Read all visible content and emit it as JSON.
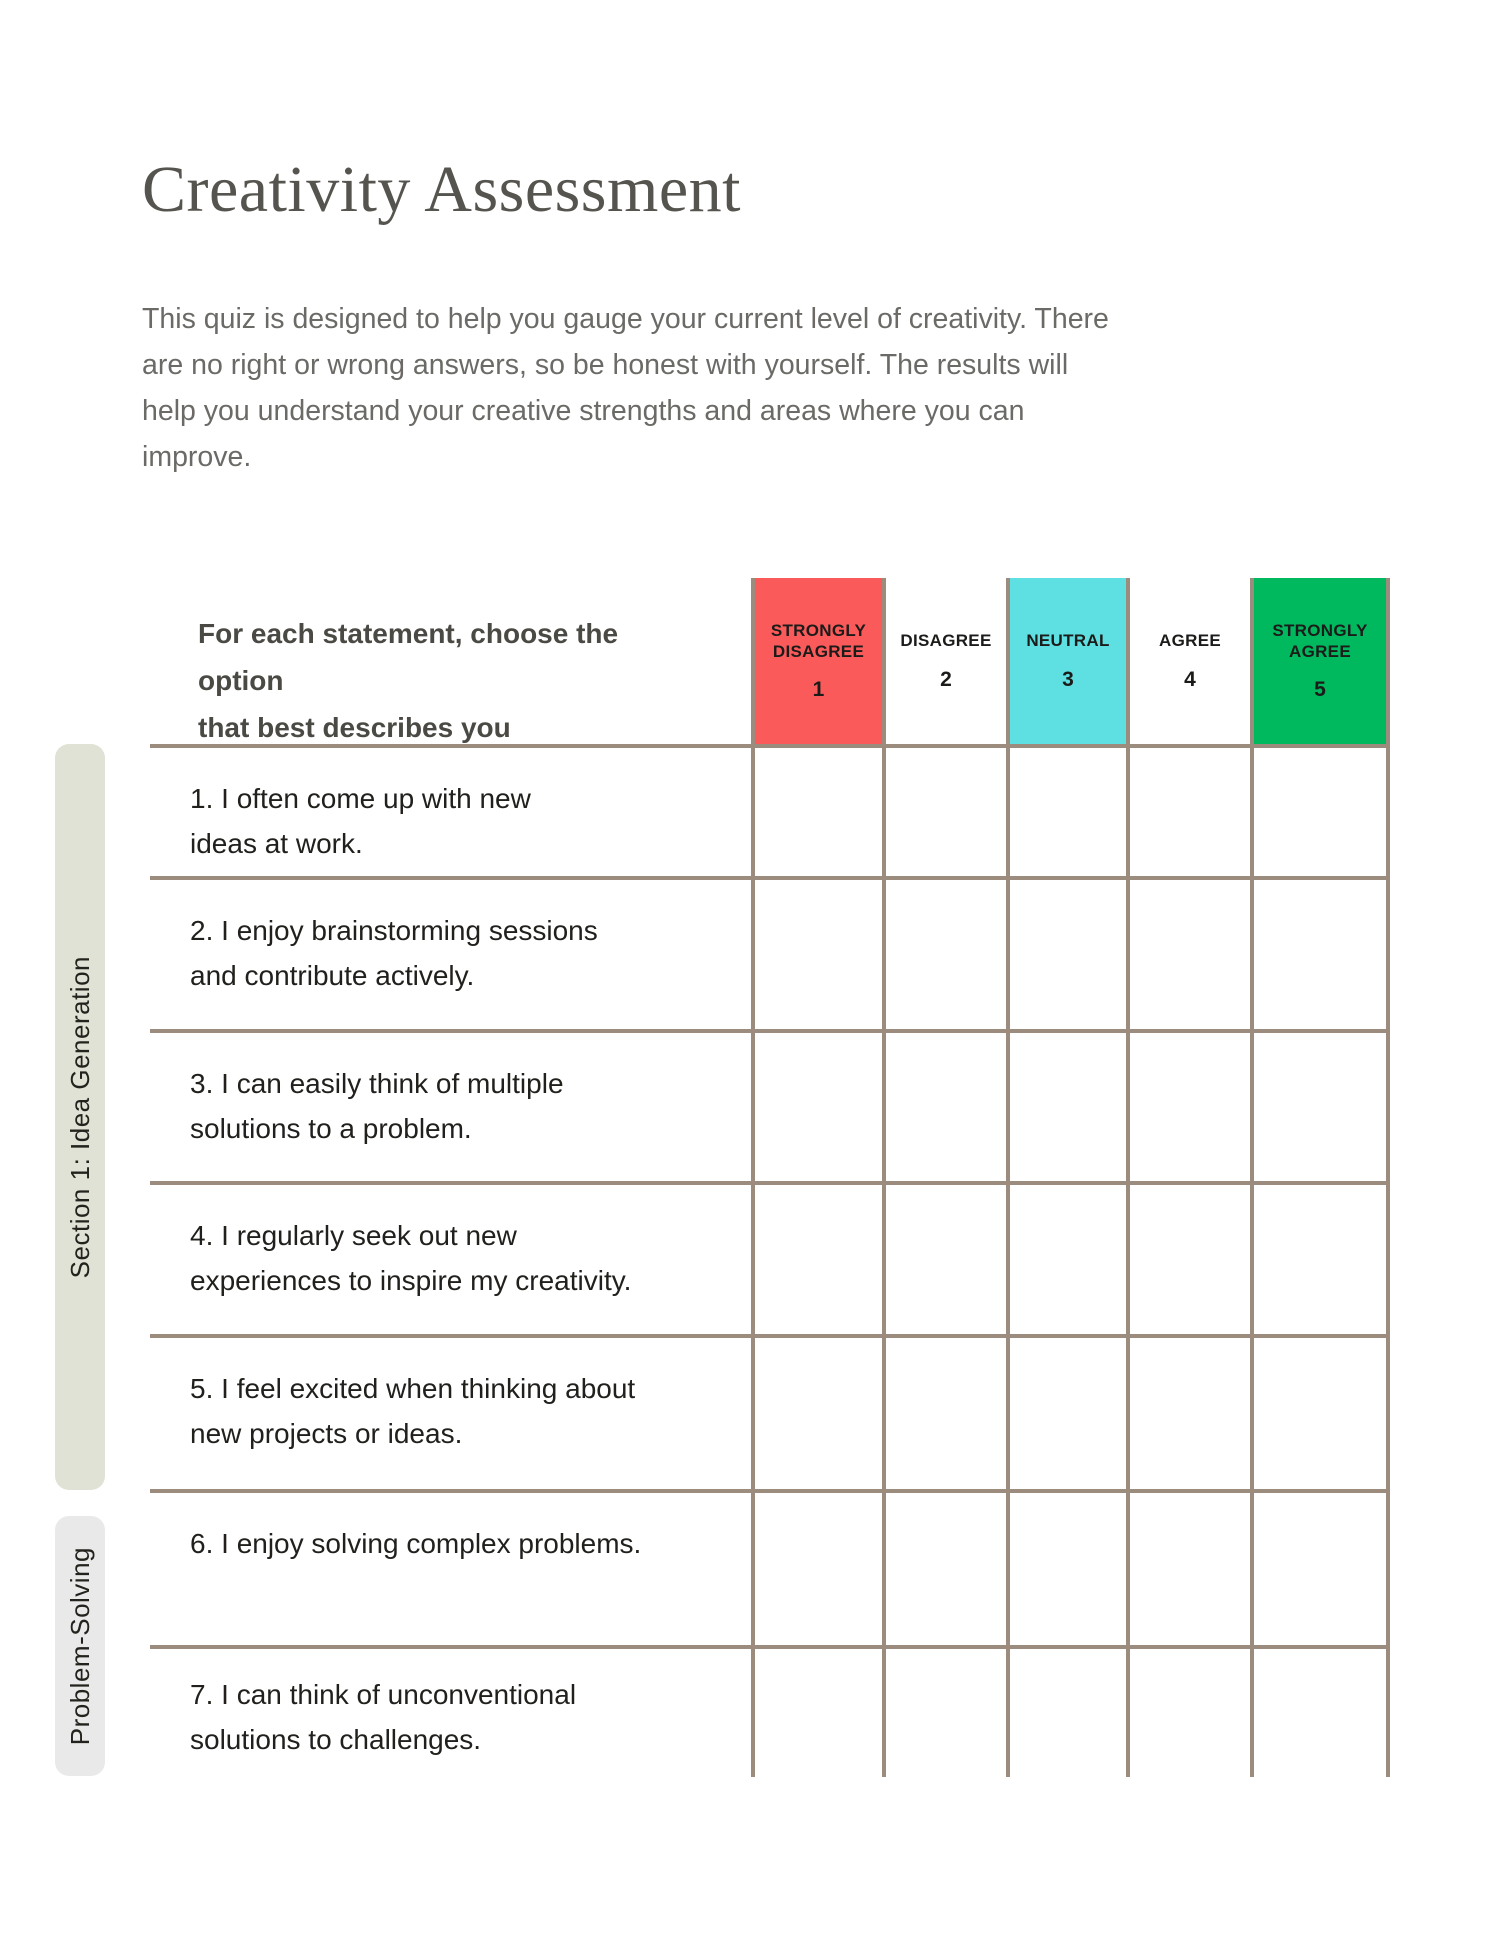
{
  "page": {
    "title": "Creativity Assessment",
    "description": "This quiz is designed to help you gauge your current level of creativity. There\nare no right or wrong answers, so be honest with yourself. The results will\nhelp you understand your creative strengths and areas where you can\nimprove."
  },
  "table": {
    "prompt": "For each statement, choose the option\nthat best describes you",
    "scale": [
      {
        "label": "STRONGLY\nDISAGREE",
        "value": "1",
        "color": "#fb5a5a"
      },
      {
        "label": "DISAGREE",
        "value": "2",
        "color": null
      },
      {
        "label": "NEUTRAL",
        "value": "3",
        "color": "#5ee0e3"
      },
      {
        "label": "AGREE",
        "value": "4",
        "color": null
      },
      {
        "label": "STRONGLY\nAGREE",
        "value": "5",
        "color": "#00b85e"
      }
    ],
    "questions": [
      "1. I often come up with new\nideas at work.",
      "2. I enjoy brainstorming sessions\nand contribute actively.",
      "3. I can easily think of multiple\nsolutions to a problem.",
      "4. I regularly seek out new\nexperiences to inspire my creativity.",
      "5. I feel excited when thinking about\nnew projects or ideas.",
      "6. I enjoy solving complex problems.",
      "7. I can think of unconventional\nsolutions to challenges."
    ]
  },
  "sections": [
    {
      "label": "Section 1: Idea Generation",
      "color": "#e0e2d5"
    },
    {
      "label": "Problem-Solving",
      "color": "#e9e9ea"
    }
  ],
  "colors": {
    "grid_line": "#9c8c7e",
    "strongly_disagree": "#fb5a5a",
    "neutral": "#5ee0e3",
    "strongly_agree": "#00b85e",
    "section1_pill": "#e0e2d5",
    "section2_pill": "#e9e9ea"
  }
}
